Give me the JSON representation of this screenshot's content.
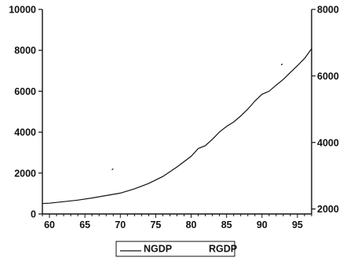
{
  "chart_data": {
    "type": "line",
    "title": "",
    "xlabel": "",
    "ylabel": "",
    "x_range": [
      59,
      97
    ],
    "x_ticks": [
      60,
      65,
      70,
      75,
      80,
      85,
      90,
      95
    ],
    "x_tick_labels": [
      "60",
      "65",
      "70",
      "75",
      "80",
      "85",
      "90",
      "95"
    ],
    "y_left": {
      "range": [
        0,
        10000
      ],
      "ticks": [
        0,
        2000,
        4000,
        6000,
        8000,
        10000
      ],
      "tick_labels": [
        "0",
        "2000",
        "4000",
        "6000",
        "8000",
        "10000"
      ]
    },
    "y_right": {
      "range": [
        1850,
        8000
      ],
      "ticks": [
        2000,
        4000,
        6000,
        8000
      ],
      "tick_labels": [
        "2000",
        "4000",
        "6000",
        "8000"
      ]
    },
    "legend": {
      "placement": "bottom-center",
      "entries": [
        "NGDP",
        "RGDP"
      ]
    },
    "series": [
      {
        "name": "NGDP",
        "axis": "left",
        "color": "#111111",
        "x": [
          59,
          60,
          62,
          64,
          66,
          68,
          70,
          72,
          74,
          76,
          78,
          80,
          81,
          82,
          83,
          84,
          85,
          86,
          87,
          88,
          89,
          90,
          91,
          92,
          93,
          94,
          95,
          96,
          97
        ],
        "values": [
          510,
          530,
          600,
          680,
          780,
          900,
          1020,
          1230,
          1490,
          1830,
          2300,
          2820,
          3200,
          3340,
          3650,
          4010,
          4280,
          4500,
          4790,
          5130,
          5520,
          5850,
          6000,
          6300,
          6580,
          6920,
          7250,
          7600,
          8080
        ]
      },
      {
        "name": "RGDP",
        "axis": "right",
        "color": "#111111",
        "x": [
          68.8,
          69.0,
          92.7,
          92.9
        ],
        "values": [
          3180,
          3210,
          6330,
          6360
        ]
      }
    ]
  }
}
